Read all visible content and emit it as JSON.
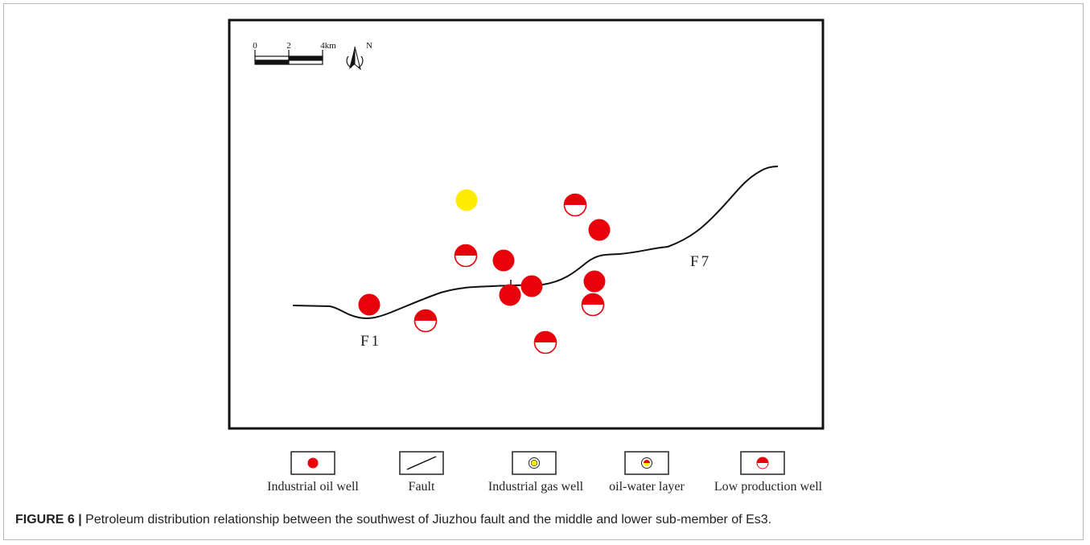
{
  "map": {
    "scale_bar": {
      "ticks": [
        "0",
        "2",
        "4km"
      ]
    },
    "north_arrow": {
      "label": "N"
    },
    "faults": [
      {
        "label": "F1"
      },
      {
        "label": "F7"
      }
    ],
    "wells": [
      {
        "type": "industrial-gas",
        "color": "#ffec00"
      },
      {
        "type": "low-production"
      },
      {
        "type": "industrial-oil"
      },
      {
        "type": "low-production"
      },
      {
        "type": "industrial-oil"
      },
      {
        "type": "industrial-oil"
      },
      {
        "type": "industrial-oil"
      },
      {
        "type": "industrial-oil"
      },
      {
        "type": "industrial-oil"
      },
      {
        "type": "low-production"
      },
      {
        "type": "low-production"
      },
      {
        "type": "low-production"
      }
    ],
    "colors": {
      "oil_red": "#e8000b",
      "gas_yellow": "#ffec00",
      "line": "#111111"
    }
  },
  "legend": [
    {
      "key": "industrial-oil",
      "label": "Industrial oil well"
    },
    {
      "key": "fault",
      "label": "Fault"
    },
    {
      "key": "industrial-gas",
      "label": "Industrial gas well"
    },
    {
      "key": "oil-water",
      "label": "oil-water layer"
    },
    {
      "key": "low-production",
      "label": "Low production well"
    }
  ],
  "caption": {
    "prefix": "FIGURE 6 |",
    "text": " Petroleum distribution relationship between the southwest of Jiuzhou fault and the middle and lower sub-member of Es3."
  }
}
